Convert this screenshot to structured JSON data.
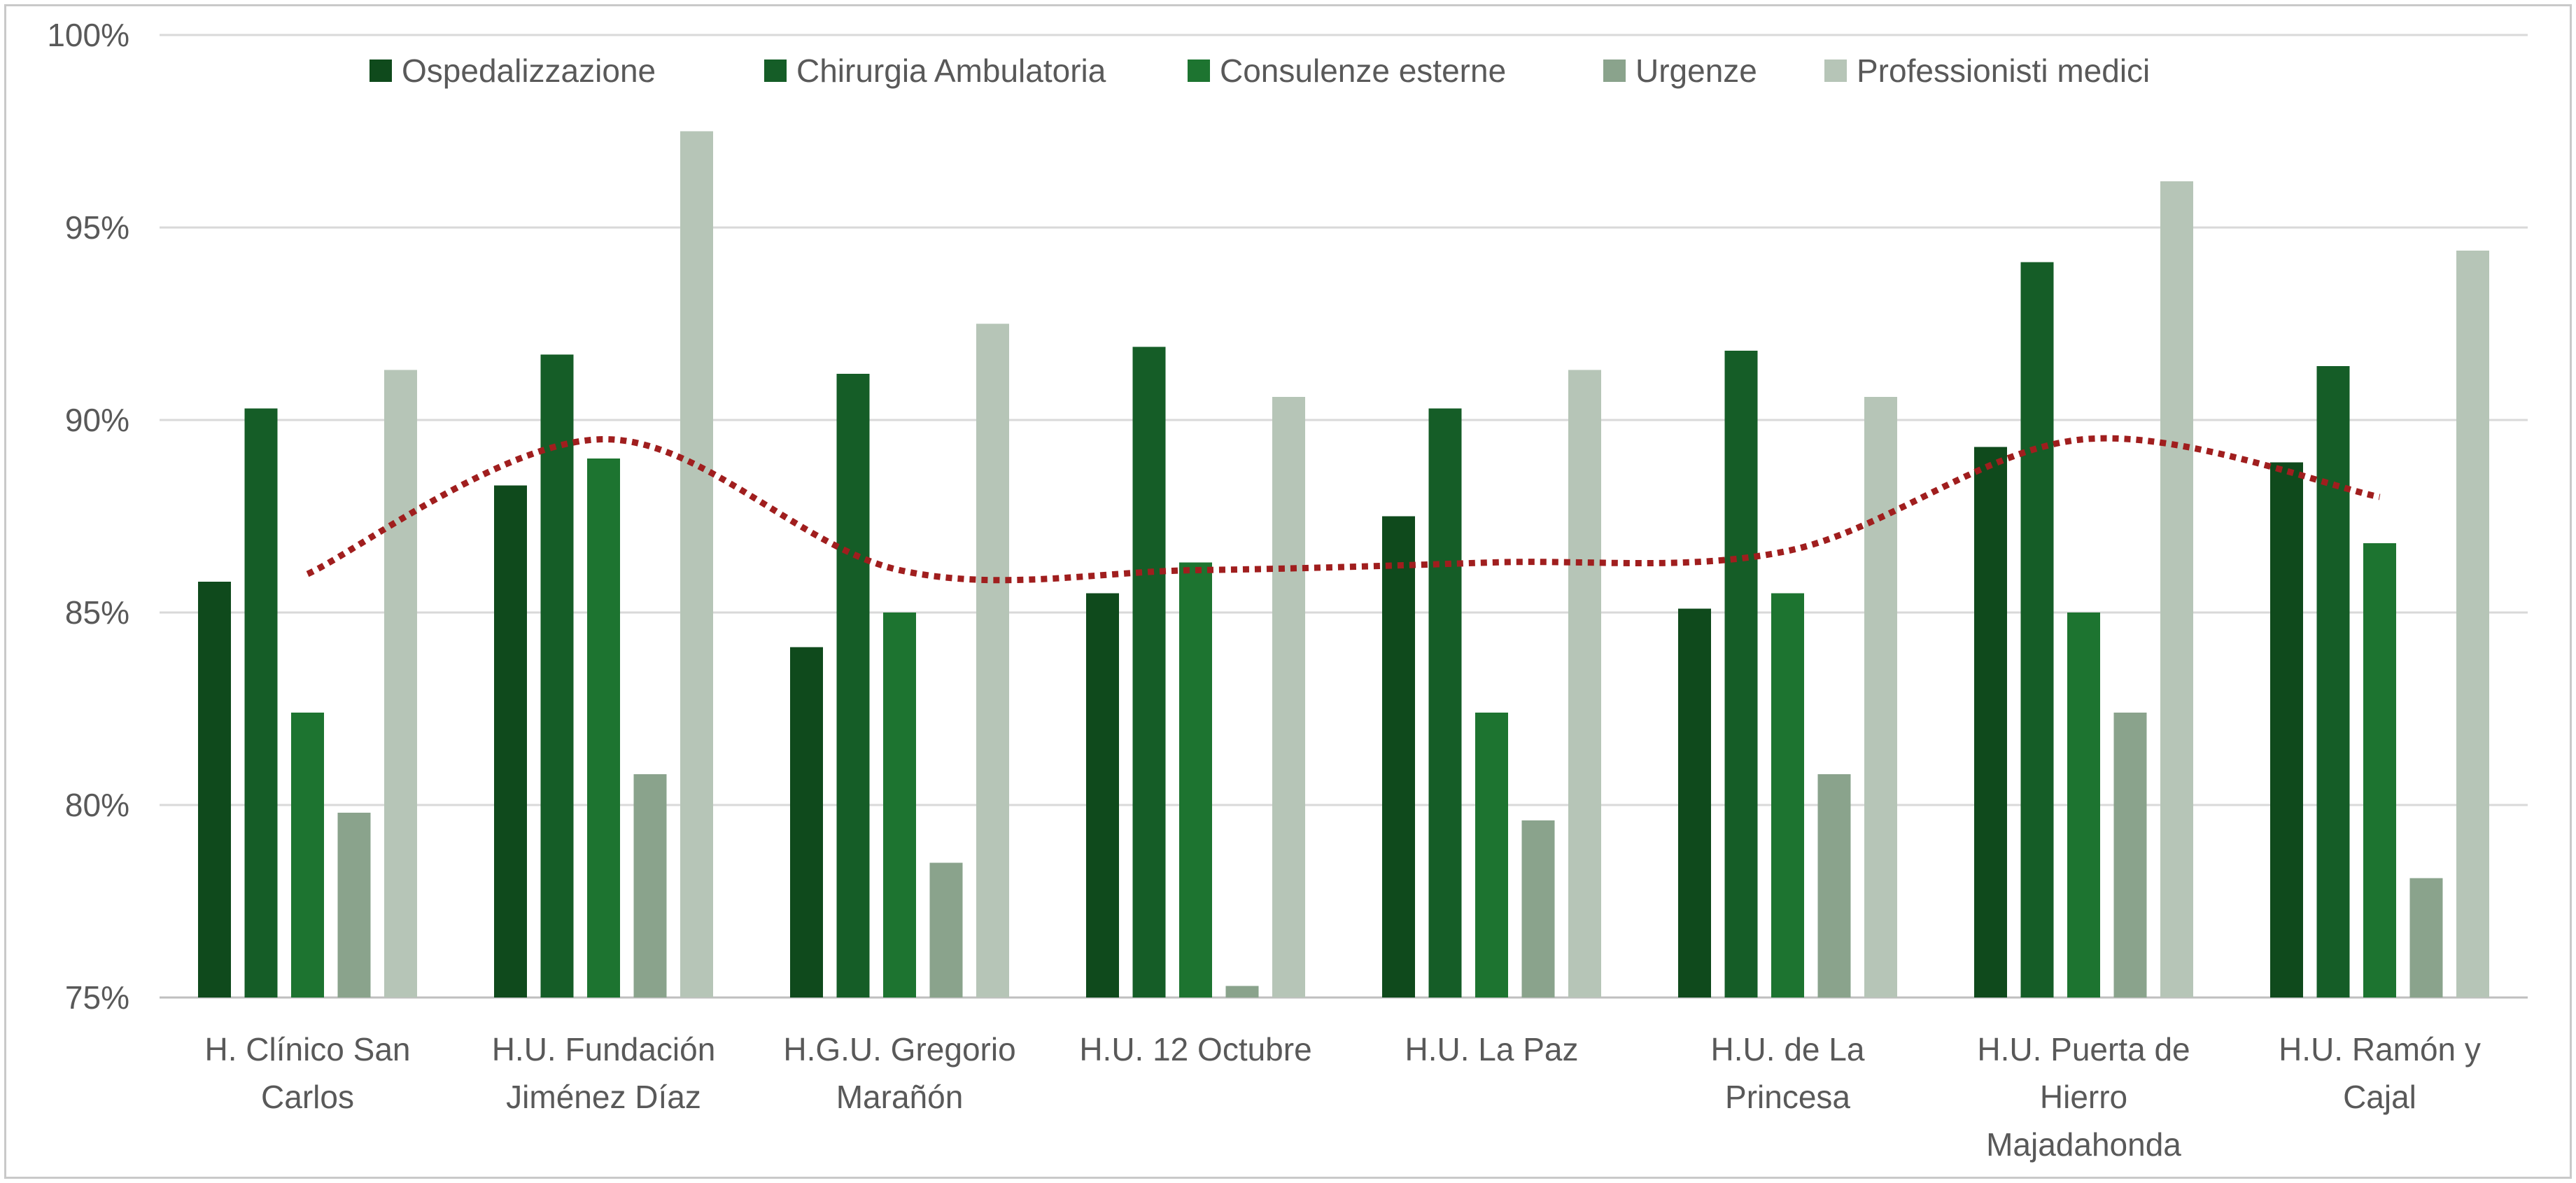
{
  "chart_data": {
    "type": "bar",
    "title": "",
    "xlabel": "",
    "ylabel": "",
    "ylim": [
      75,
      100
    ],
    "y_ticks": [
      75,
      80,
      85,
      90,
      95,
      100
    ],
    "y_tick_labels": [
      "75%",
      "80%",
      "85%",
      "90%",
      "95%",
      "100%"
    ],
    "grid": true,
    "legend_position": "top-center",
    "categories": [
      [
        "H. Clínico San",
        "Carlos"
      ],
      [
        "H.U. Fundación",
        "Jiménez Díaz"
      ],
      [
        "H.G.U. Gregorio",
        "Marañón"
      ],
      [
        "H.U. 12 Octubre"
      ],
      [
        "H.U. La Paz"
      ],
      [
        "H.U. de La",
        "Princesa"
      ],
      [
        "H.U. Puerta de",
        "Hierro",
        "Majadahonda"
      ],
      [
        "H.U. Ramón y",
        "Cajal"
      ]
    ],
    "series": [
      {
        "name": "Ospedalizzazione",
        "color": "#0f4a1c",
        "values": [
          85.8,
          88.3,
          84.1,
          85.5,
          87.5,
          85.1,
          89.3,
          88.9
        ]
      },
      {
        "name": "Chirurgia Ambulatoria",
        "color": "#155d27",
        "values": [
          90.3,
          91.7,
          91.2,
          91.9,
          90.3,
          91.8,
          94.1,
          91.4
        ]
      },
      {
        "name": "Consulenze esterne",
        "color": "#1d7430",
        "values": [
          82.4,
          89.0,
          85.0,
          86.3,
          82.4,
          85.5,
          85.0,
          86.8
        ]
      },
      {
        "name": "Urgenze",
        "color": "#8aa38c",
        "values": [
          79.8,
          80.8,
          78.5,
          75.3,
          79.6,
          80.8,
          82.4,
          78.1
        ]
      },
      {
        "name": "Professionisti medici",
        "color": "#b6c5b7",
        "values": [
          91.3,
          97.5,
          92.5,
          90.6,
          91.3,
          90.6,
          96.2,
          94.4
        ]
      }
    ],
    "trendline": {
      "type": "dotted-smooth",
      "color": "#a01e1e",
      "values": [
        86.0,
        89.5,
        86.1,
        86.1,
        86.3,
        86.6,
        89.5,
        88.0
      ]
    }
  }
}
